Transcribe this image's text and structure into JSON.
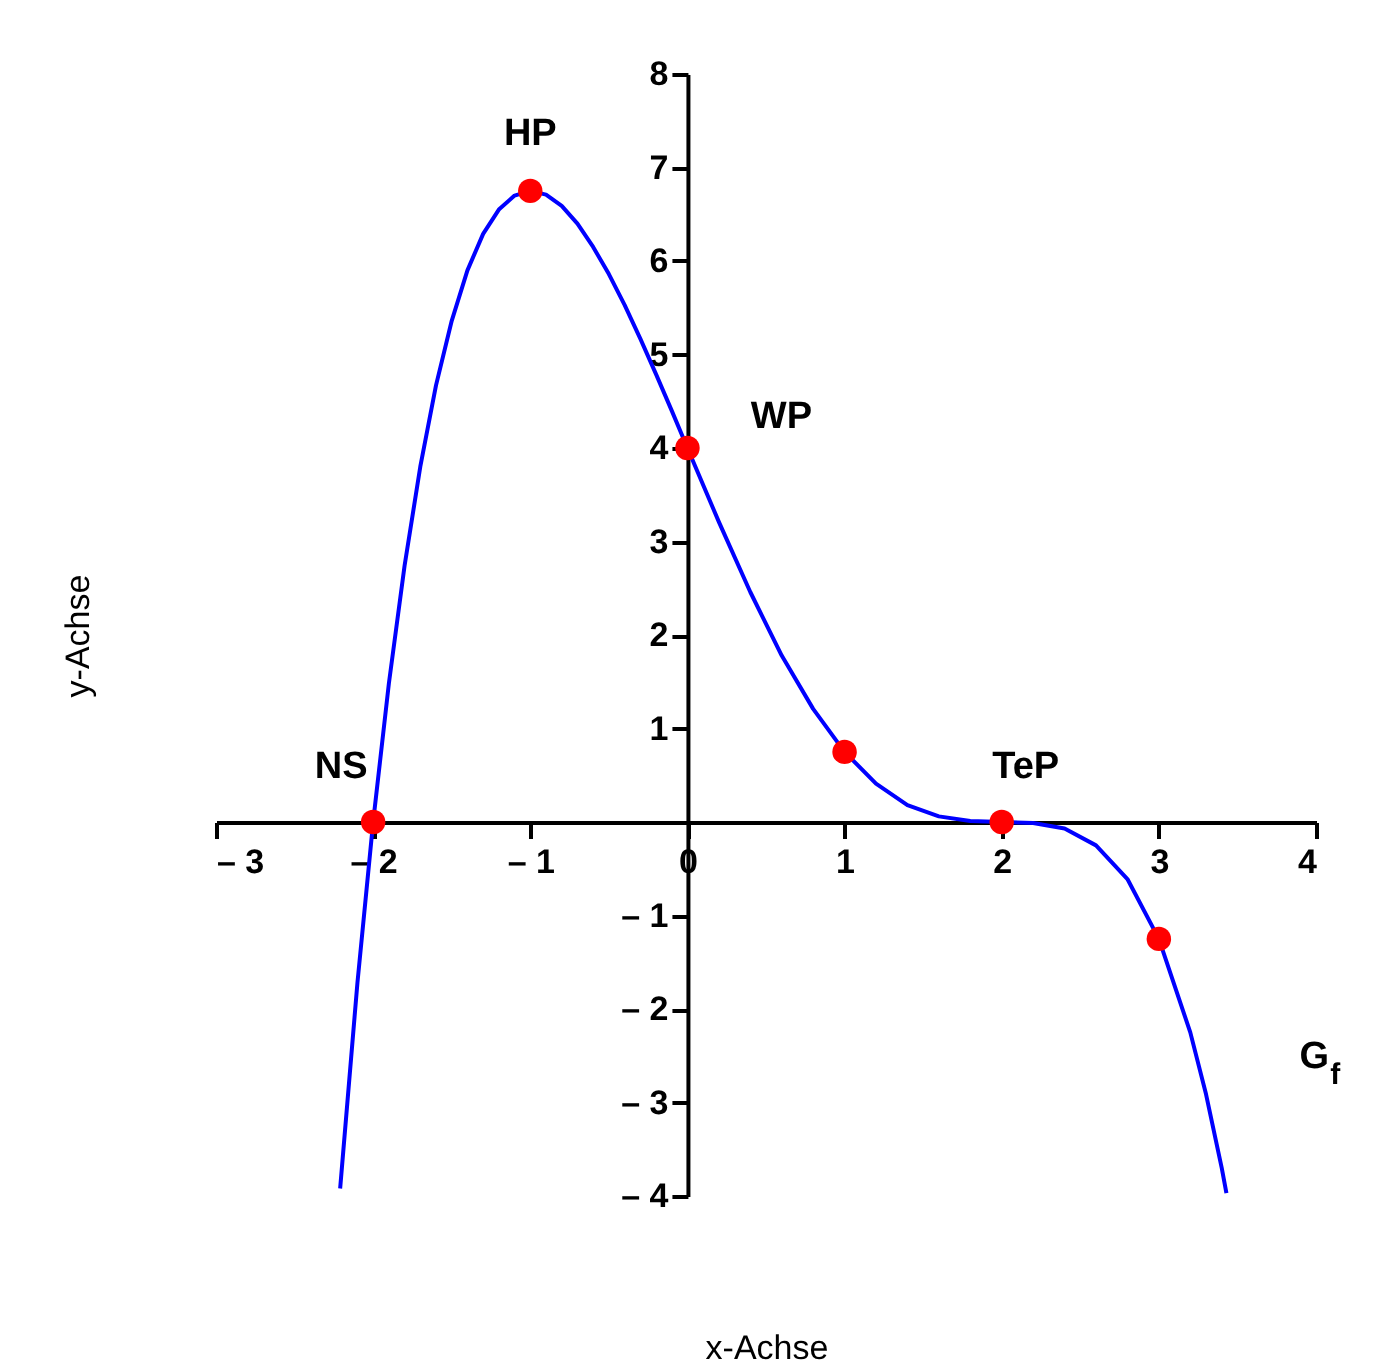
{
  "chart_data": {
    "type": "line",
    "xlabel": "x-Achse",
    "ylabel": "y-Achse",
    "xlim": [
      -3,
      4
    ],
    "ylim": [
      -4,
      8
    ],
    "xticks": [
      {
        "value": -3,
        "label": "– 3"
      },
      {
        "value": -2,
        "label": "– 2"
      },
      {
        "value": -1,
        "label": "– 1"
      },
      0,
      1,
      2,
      3,
      4
    ],
    "yticks": [
      {
        "value": -4,
        "label": "– 4"
      },
      {
        "value": -3,
        "label": "– 3"
      },
      {
        "value": -2,
        "label": "– 2"
      },
      {
        "value": -1,
        "label": "– 1"
      },
      {
        "value": 0,
        "label": null
      },
      1,
      2,
      3,
      4,
      5,
      6,
      7,
      8
    ],
    "grid": false,
    "series": [
      {
        "color": "#0000ff",
        "x": [
          -2.21,
          -2.1,
          -2.0,
          -1.9,
          -1.8,
          -1.7,
          -1.6,
          -1.5,
          -1.4,
          -1.3,
          -1.2,
          -1.1,
          -1.0,
          -0.9,
          -0.8,
          -0.7,
          -0.6,
          -0.5,
          -0.4,
          -0.3,
          -0.2,
          -0.1,
          0,
          0.2,
          0.4,
          0.6,
          0.8,
          1.0,
          1.2,
          1.4,
          1.6,
          1.8,
          2.0,
          2.2,
          2.4,
          2.6,
          2.8,
          3.0,
          3.2,
          3.3,
          3.4,
          3.43
        ],
        "values": [
          -3.92,
          -1.72,
          0,
          1.48,
          2.74,
          3.8,
          4.67,
          5.36,
          5.9,
          6.29,
          6.55,
          6.7,
          6.75,
          6.71,
          6.59,
          6.4,
          6.15,
          5.86,
          5.53,
          5.17,
          4.79,
          4.4,
          4,
          3.21,
          2.46,
          1.78,
          1.21,
          0.75,
          0.41,
          0.18,
          0.06,
          0.01,
          0,
          -0.01,
          -0.07,
          -0.25,
          -0.61,
          -1.25,
          -2.25,
          -2.91,
          -3.7,
          -3.97
        ]
      },
      {
        "type": "scatter",
        "color": "#ff0000",
        "marker": "circle",
        "x": [
          -2,
          -1,
          0,
          1,
          2,
          3
        ],
        "values": [
          0,
          6.75,
          4,
          0.75,
          0,
          -1.25
        ]
      }
    ],
    "annotations": [
      {
        "text": "HP",
        "x": -1,
        "y": 6.75
      },
      {
        "text": "WP",
        "x": 0,
        "y": 4
      },
      {
        "text": "NS",
        "x": -2,
        "y": 0
      },
      {
        "text": "TeP",
        "x": 2,
        "y": 0
      },
      {
        "text": "G$_{f}$",
        "x": 3.2,
        "y": -2.25
      }
    ]
  }
}
